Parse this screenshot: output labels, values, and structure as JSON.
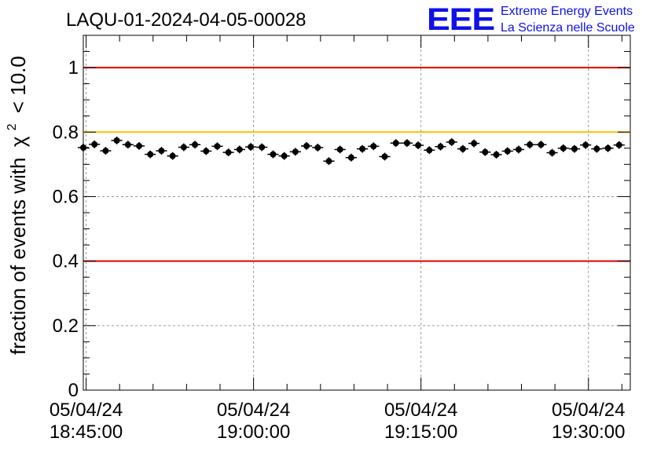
{
  "chart_data": {
    "type": "scatter",
    "title": "LAQU-01-2024-04-05-00028",
    "ylabel": "fraction of events with",
    "ylabel_symbol": "χ",
    "ylabel_superscript": "2",
    "ylabel_suffix": "< 10.0",
    "ylim": [
      0,
      1.1
    ],
    "yticks": [
      0,
      0.2,
      0.4,
      0.6,
      0.8,
      1
    ],
    "ytick_labels": [
      "0",
      "0.2",
      "0.4",
      "0.6",
      "0.8",
      "1"
    ],
    "xlim": [
      "18:44:45",
      "19:33:45"
    ],
    "xticks": [
      {
        "time": "18:45:00",
        "date": "05/04/24",
        "clock": "18:45:00"
      },
      {
        "time": "19:00:00",
        "date": "05/04/24",
        "clock": "19:00:00"
      },
      {
        "time": "19:15:00",
        "date": "05/04/24",
        "clock": "19:15:00"
      },
      {
        "time": "19:30:00",
        "date": "05/04/24",
        "clock": "19:30:00"
      }
    ],
    "grid": true,
    "reference_lines": [
      {
        "value": 1.0,
        "color": "#e00000"
      },
      {
        "value": 0.8,
        "color": "#ffbf00"
      },
      {
        "value": 0.4,
        "color": "#e00000"
      }
    ],
    "marker_color": "#000000",
    "series": [
      {
        "x_start": "18:44:45",
        "x_step_seconds": 60,
        "y_error": 0.012,
        "values": [
          0.752,
          0.762,
          0.742,
          0.774,
          0.761,
          0.757,
          0.731,
          0.742,
          0.726,
          0.753,
          0.761,
          0.741,
          0.756,
          0.737,
          0.746,
          0.754,
          0.753,
          0.731,
          0.726,
          0.739,
          0.757,
          0.752,
          0.71,
          0.746,
          0.721,
          0.748,
          0.756,
          0.724,
          0.766,
          0.766,
          0.759,
          0.744,
          0.755,
          0.769,
          0.748,
          0.765,
          0.738,
          0.73,
          0.741,
          0.746,
          0.761,
          0.761,
          0.736,
          0.75,
          0.748,
          0.76,
          0.748,
          0.75,
          0.76
        ]
      }
    ]
  },
  "logo": {
    "letters": "EEE",
    "line1": "Extreme Energy Events",
    "line2": "La Scienza nelle Scuole",
    "color": "#1010e8"
  }
}
